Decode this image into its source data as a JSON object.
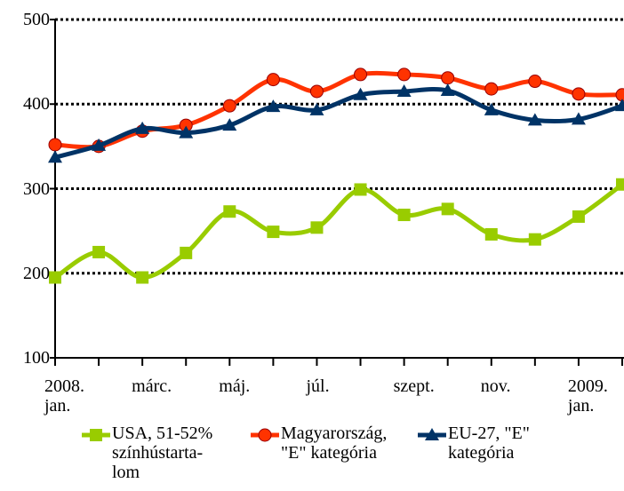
{
  "chart_data": {
    "type": "line",
    "categories": [
      "2008.\njan.",
      null,
      "márc.",
      null,
      "máj.",
      null,
      "júl.",
      null,
      "szept.",
      null,
      "nov.",
      null,
      "2009.\njan.",
      null
    ],
    "series": [
      {
        "name": "USA, 51-52%\nszínhústarta-\nlom",
        "color": "#99cc00",
        "marker": "square",
        "values": [
          195,
          225,
          195,
          224,
          273,
          249,
          254,
          299,
          269,
          276,
          246,
          240,
          267,
          305
        ]
      },
      {
        "name": "Magyarország,\n\"E\" kategória",
        "color": "#ff3300",
        "marker": "circle",
        "values": [
          352,
          350,
          368,
          375,
          398,
          429,
          415,
          435,
          435,
          431,
          418,
          427,
          412,
          411
        ]
      },
      {
        "name": "EU-27, \"E\"\nkategória",
        "color": "#003366",
        "marker": "triangle",
        "values": [
          337,
          351,
          371,
          366,
          375,
          397,
          393,
          411,
          415,
          416,
          393,
          381,
          382,
          398
        ]
      }
    ],
    "ylim": [
      100,
      500
    ],
    "yticks": [
      100,
      200,
      300,
      400,
      500
    ],
    "grid": true,
    "legend": "bottom"
  }
}
